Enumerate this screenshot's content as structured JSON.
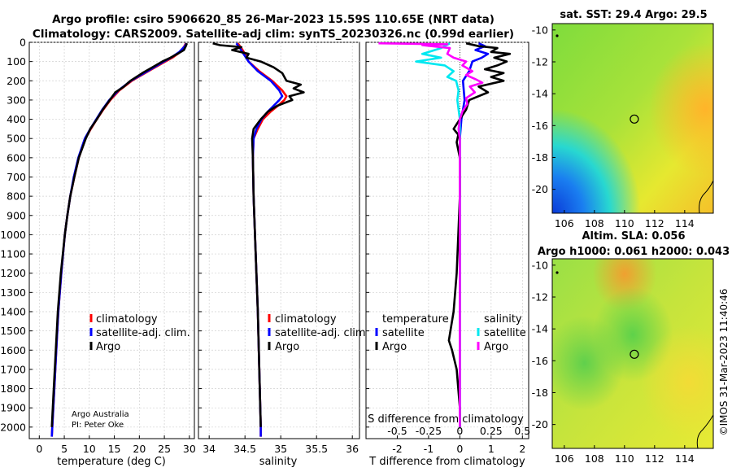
{
  "title": {
    "line1": "Argo profile: csiro 5906620_85 26-Mar-2023 15.59S 110.65E (NRT data)",
    "line2": "Climatology: CARS2009. Satellite-adj clim: synTS_20230326.nc (0.99d earlier)"
  },
  "credits": {
    "agency": "Argo Australia",
    "pi": "PI: Peter Oke",
    "stamp": "©IMOS 31-Mar-2023 11:40:46"
  },
  "colors": {
    "climatology": "#ff0000",
    "satellite_adj": "#0000ff",
    "argo": "#000000",
    "sat_temperature": "#00e8f0",
    "argo_salinity": "#ff00ff",
    "grid": "#d0d0d0"
  },
  "chart_data": [
    {
      "id": "temperature-profile",
      "type": "line",
      "xlabel": "temperature (deg C)",
      "ylabel": "",
      "xlim": [
        -2,
        31
      ],
      "ylim": [
        2060,
        0
      ],
      "xticks": [
        0,
        5,
        10,
        15,
        20,
        25,
        30
      ],
      "yticks": [
        0,
        100,
        200,
        300,
        400,
        500,
        600,
        700,
        800,
        900,
        1000,
        1100,
        1200,
        1300,
        1400,
        1500,
        1600,
        1700,
        1800,
        1900,
        2000
      ],
      "legend": [
        "climatology",
        "satellite-adj. clim.",
        "Argo"
      ],
      "series": [
        {
          "name": "climatology",
          "color": "#ff0000",
          "depth": [
            5,
            20,
            50,
            80,
            100,
            150,
            200,
            250,
            300,
            350,
            400,
            450,
            500,
            600,
            700,
            800,
            900,
            1000,
            1200,
            1400,
            1600,
            1800,
            2000,
            2050
          ],
          "values": [
            29.3,
            29.0,
            28.2,
            26.6,
            25.2,
            21.8,
            18.5,
            16.0,
            14.2,
            12.8,
            11.5,
            10.3,
            9.2,
            7.9,
            7.0,
            6.2,
            5.6,
            5.1,
            4.4,
            3.8,
            3.4,
            3.0,
            2.6,
            2.5
          ]
        },
        {
          "name": "satellite-adj. clim.",
          "color": "#0000ff",
          "depth": [
            5,
            20,
            50,
            80,
            100,
            150,
            200,
            250,
            300,
            350,
            400,
            450,
            500,
            600,
            700,
            800,
            900,
            1000,
            1200,
            1400,
            1600,
            1800,
            2000,
            2050
          ],
          "values": [
            29.4,
            29.1,
            28.0,
            26.3,
            24.9,
            21.6,
            18.3,
            15.8,
            14.0,
            12.6,
            11.4,
            10.2,
            9.1,
            7.8,
            6.9,
            6.2,
            5.6,
            5.1,
            4.4,
            3.8,
            3.4,
            3.0,
            2.6,
            2.5
          ]
        },
        {
          "name": "Argo",
          "color": "#000000",
          "depth": [
            5,
            20,
            40,
            60,
            80,
            100,
            130,
            160,
            200,
            230,
            260,
            300,
            350,
            400,
            450,
            500,
            600,
            700,
            800,
            900,
            1000,
            1200,
            1400,
            1600,
            1800,
            2000
          ],
          "values": [
            29.5,
            29.3,
            28.9,
            27.6,
            26.2,
            24.6,
            22.6,
            20.6,
            18.2,
            16.9,
            15.2,
            14.1,
            12.7,
            11.5,
            10.2,
            9.3,
            7.9,
            7.0,
            6.2,
            5.6,
            5.1,
            4.3,
            3.7,
            3.3,
            2.9,
            2.5
          ]
        }
      ]
    },
    {
      "id": "salinity-profile",
      "type": "line",
      "xlabel": "salinity",
      "xlim": [
        33.85,
        36.1
      ],
      "ylim": [
        2060,
        0
      ],
      "xticks": [
        34,
        34.5,
        35,
        35.5,
        36
      ],
      "legend": [
        "climatology",
        "satellite-adj. clim.",
        "Argo"
      ],
      "series": [
        {
          "name": "climatology",
          "color": "#ff0000",
          "depth": [
            5,
            30,
            60,
            100,
            150,
            200,
            250,
            280,
            300,
            330,
            360,
            400,
            450,
            500,
            600,
            800,
            1000,
            1400,
            2000,
            2050
          ],
          "values": [
            34.4,
            34.45,
            34.5,
            34.55,
            34.7,
            34.88,
            35.02,
            35.08,
            35.05,
            34.96,
            34.86,
            34.75,
            34.68,
            34.62,
            34.61,
            34.62,
            34.64,
            34.68,
            34.72,
            34.72
          ]
        },
        {
          "name": "satellite-adj. clim.",
          "color": "#0000ff",
          "depth": [
            5,
            30,
            60,
            100,
            150,
            200,
            250,
            280,
            300,
            330,
            360,
            400,
            450,
            500,
            600,
            800,
            1000,
            1400,
            2000,
            2050
          ],
          "values": [
            34.38,
            34.43,
            34.48,
            34.55,
            34.68,
            34.86,
            34.98,
            35.02,
            34.98,
            34.9,
            34.82,
            34.73,
            34.66,
            34.62,
            34.61,
            34.62,
            34.64,
            34.68,
            34.72,
            34.72
          ]
        },
        {
          "name": "Argo",
          "color": "#000000",
          "depth": [
            5,
            15,
            25,
            40,
            60,
            80,
            100,
            130,
            160,
            200,
            220,
            240,
            260,
            280,
            300,
            330,
            360,
            400,
            450,
            500,
            600,
            800,
            1000,
            1400,
            2000
          ],
          "values": [
            34.05,
            34.15,
            34.45,
            34.32,
            34.55,
            34.52,
            34.72,
            34.9,
            35.02,
            35.08,
            35.28,
            35.18,
            35.32,
            35.12,
            35.16,
            34.95,
            34.82,
            34.72,
            34.62,
            34.6,
            34.61,
            34.62,
            34.64,
            34.68,
            34.72
          ]
        }
      ]
    },
    {
      "id": "difference-profile",
      "type": "line",
      "xlabel": "T difference from climatology",
      "xlabel_top": "S difference from climatology",
      "xlim": [
        -3.0,
        2.2
      ],
      "ylim": [
        2060,
        0
      ],
      "xticks": [
        -2,
        -1,
        0,
        1,
        2
      ],
      "sticks_labels": [
        "-0.5",
        "-0.25",
        "0",
        "0.25",
        "0.5"
      ],
      "legend_temperature_title": "temperature",
      "legend_salinity_title": "salinity",
      "legend_temperature": [
        "satellite",
        "Argo"
      ],
      "legend_salinity": [
        "satellite",
        "Argo"
      ],
      "series": [
        {
          "name": "temperature satellite",
          "color": "#0000ff",
          "depth": [
            5,
            20,
            40,
            60,
            80,
            100,
            150,
            200,
            300,
            400,
            500,
            700,
            1000,
            1500,
            2000
          ],
          "values": [
            0.6,
            0.8,
            0.5,
            0.9,
            0.7,
            0.4,
            0.3,
            0.1,
            0.15,
            0.05,
            0.0,
            0.0,
            0.0,
            0.0,
            0.0
          ]
        },
        {
          "name": "temperature Argo",
          "color": "#000000",
          "depth": [
            5,
            20,
            30,
            50,
            60,
            80,
            100,
            120,
            140,
            160,
            180,
            200,
            230,
            260,
            300,
            350,
            400,
            450,
            480,
            520,
            600,
            800,
            1000,
            1200,
            1400,
            1500,
            1550,
            1600,
            1700,
            1900,
            2000
          ],
          "values": [
            0.2,
            0.6,
            1.2,
            1.0,
            1.6,
            1.1,
            1.5,
            1.2,
            0.8,
            1.4,
            1.0,
            1.4,
            0.6,
            0.9,
            0.3,
            0.2,
            0.0,
            -0.2,
            -0.05,
            -0.1,
            0.0,
            0.0,
            -0.05,
            -0.1,
            -0.2,
            -0.3,
            -0.35,
            -0.25,
            -0.1,
            0.0,
            0.0
          ]
        },
        {
          "name": "salinity satellite",
          "color": "#00e8f0",
          "depth": [
            5,
            30,
            60,
            80,
            100,
            120,
            150,
            180,
            200,
            250,
            300,
            400,
            500,
            700,
            1000,
            1500,
            2000
          ],
          "values": [
            -0.08,
            -0.15,
            -0.3,
            -0.15,
            -0.35,
            -0.12,
            -0.05,
            -0.1,
            -0.03,
            -0.01,
            -0.02,
            0.0,
            0.0,
            0.0,
            0.0,
            0.0,
            0.0
          ]
        },
        {
          "name": "salinity Argo",
          "color": "#ff00ff",
          "depth": [
            5,
            10,
            15,
            30,
            60,
            80,
            100,
            120,
            150,
            170,
            190,
            210,
            230,
            260,
            290,
            320,
            360,
            400,
            450,
            500,
            600,
            800,
            1000,
            1500,
            2000
          ],
          "values": [
            -0.65,
            -0.1,
            -0.3,
            -0.08,
            -0.1,
            -0.05,
            0.05,
            0.02,
            0.1,
            0.05,
            0.12,
            0.18,
            0.08,
            0.12,
            0.05,
            0.06,
            0.02,
            0.0,
            -0.01,
            0.0,
            0.0,
            0.0,
            0.0,
            0.0,
            0.0
          ]
        }
      ]
    },
    {
      "id": "sst-map",
      "type": "heatmap",
      "title": "sat. SST: 29.4 Argo: 29.5",
      "xticks": [
        106,
        108,
        110,
        112,
        114
      ],
      "yticks": [
        -10,
        -12,
        -14,
        -16,
        -18,
        -20
      ],
      "xlim": [
        105.2,
        115.9
      ],
      "ylim": [
        -21.5,
        -9.6
      ],
      "profile_location": {
        "lon": 110.65,
        "lat": -15.59
      }
    },
    {
      "id": "sla-map",
      "type": "heatmap",
      "title": "Altim. SLA: 0.056",
      "subtitle": "Argo h1000: 0.061 h2000: 0.043",
      "xticks": [
        106,
        108,
        110,
        112,
        114
      ],
      "yticks": [
        -10,
        -12,
        -14,
        -16,
        -18,
        -20
      ],
      "xlim": [
        105.2,
        115.9
      ],
      "ylim": [
        -21.5,
        -9.6
      ],
      "profile_location": {
        "lon": 110.65,
        "lat": -15.59
      }
    }
  ]
}
